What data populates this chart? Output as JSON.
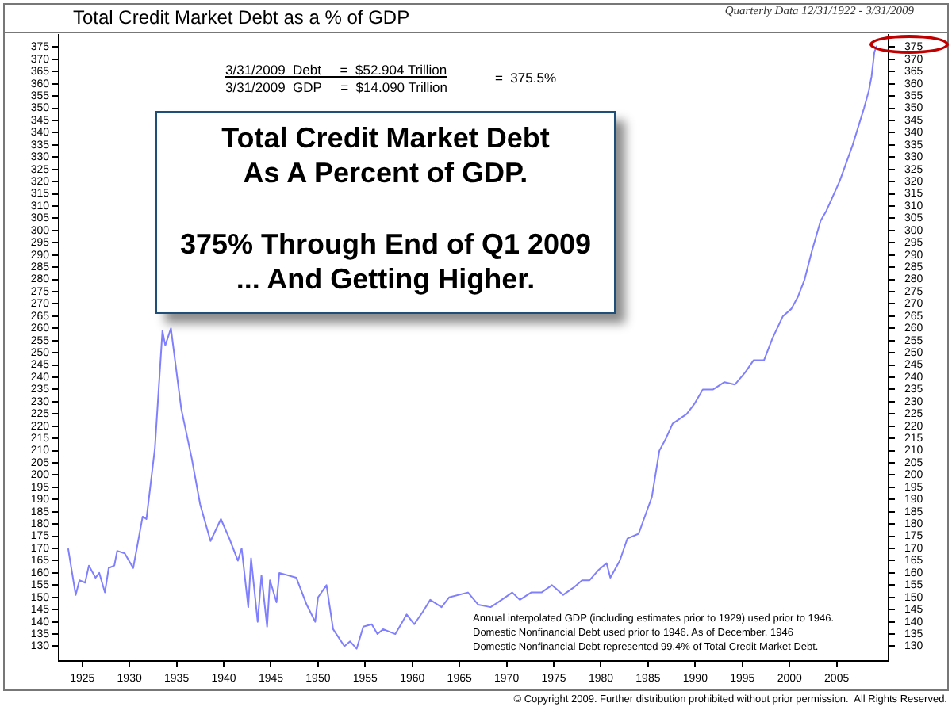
{
  "chart_data": {
    "type": "line",
    "title": "Total Credit Market Debt as a % of GDP",
    "subtitle": "Quarterly Data 12/31/1922 - 3/31/2009",
    "x": [
      1923.5,
      1924.3,
      1924.7,
      1925.3,
      1925.7,
      1926.4,
      1926.8,
      1927.4,
      1927.8,
      1928.4,
      1928.7,
      1929.5,
      1930.4,
      1931.4,
      1931.8,
      1932.7,
      1933.5,
      1933.8,
      1934.4,
      1935.5,
      1936.6,
      1937.5,
      1938.6,
      1939.7,
      1940.6,
      1941.5,
      1941.9,
      1942.6,
      1942.9,
      1943.6,
      1944.0,
      1944.6,
      1944.9,
      1945.6,
      1945.9,
      1947.7,
      1948.8,
      1949.7,
      1950.0,
      1950.9,
      1951.6,
      1952.8,
      1953.4,
      1954.1,
      1954.8,
      1955.7,
      1956.3,
      1956.9,
      1958.2,
      1959.4,
      1960.2,
      1961.1,
      1961.9,
      1963.1,
      1963.9,
      1965.9,
      1967.0,
      1968.3,
      1969.1,
      1970.6,
      1971.4,
      1972.6,
      1973.7,
      1974.8,
      1976.0,
      1977.1,
      1978.0,
      1978.8,
      1979.7,
      1980.6,
      1981.0,
      1982.0,
      1982.8,
      1984.0,
      1985.4,
      1986.2,
      1986.9,
      1987.6,
      1989.1,
      1989.9,
      1990.8,
      1991.9,
      1993.1,
      1994.2,
      1995.3,
      1996.2,
      1997.3,
      1998.2,
      1999.3,
      2000.2,
      2000.9,
      2001.6,
      2002.4,
      2003.3,
      2003.9,
      2005.3,
      2006.7,
      2007.9,
      2008.4,
      2008.7,
      2009.0,
      2009.25
    ],
    "series": [
      {
        "color": "#8080ff",
        "values": [
          170,
          151,
          157,
          156,
          163,
          158,
          160,
          152,
          162,
          163,
          169,
          168,
          162,
          183,
          182,
          211,
          259,
          253,
          260,
          227,
          207,
          188,
          173,
          182,
          174,
          165,
          170,
          146,
          166,
          140,
          159,
          138,
          157,
          148,
          160,
          158,
          147,
          140,
          150,
          155,
          137,
          130,
          132,
          129,
          138,
          139,
          135,
          137,
          135,
          143,
          139,
          144,
          149,
          146,
          150,
          152,
          147,
          146,
          148,
          152,
          149,
          152,
          152,
          155,
          151,
          154,
          157,
          157,
          161,
          164,
          158,
          165,
          174,
          176,
          191,
          210,
          215,
          221,
          225,
          229,
          235,
          235,
          238,
          237,
          242,
          247,
          247,
          256,
          265,
          268,
          273,
          280,
          292,
          304,
          308,
          320,
          335,
          350,
          357,
          363,
          373,
          375.5
        ]
      }
    ],
    "xlim": [
      1922.5,
      2010.5
    ],
    "xticks": [
      1925,
      1930,
      1935,
      1940,
      1945,
      1950,
      1955,
      1960,
      1965,
      1970,
      1975,
      1980,
      1985,
      1990,
      1995,
      2000,
      2005
    ],
    "ylim": [
      124,
      380
    ],
    "yticks": [
      130,
      135,
      140,
      145,
      150,
      155,
      160,
      165,
      170,
      175,
      180,
      185,
      190,
      195,
      200,
      205,
      210,
      215,
      220,
      225,
      230,
      235,
      240,
      245,
      250,
      255,
      260,
      265,
      270,
      275,
      280,
      285,
      290,
      295,
      300,
      305,
      310,
      315,
      320,
      325,
      330,
      335,
      340,
      345,
      350,
      355,
      360,
      365,
      370,
      375
    ],
    "y2lim": [
      124,
      380
    ],
    "y2ticks": [
      130,
      135,
      140,
      145,
      150,
      155,
      160,
      165,
      170,
      175,
      180,
      185,
      190,
      195,
      200,
      205,
      210,
      215,
      220,
      225,
      230,
      235,
      240,
      245,
      250,
      255,
      260,
      265,
      270,
      275,
      280,
      285,
      290,
      295,
      300,
      305,
      310,
      315,
      320,
      325,
      330,
      335,
      340,
      345,
      350,
      355,
      360,
      365,
      370,
      375
    ],
    "grid": false,
    "legend": false,
    "marker": "none",
    "line_style": "solid",
    "annotations": [
      "3/31/2009  Debt     =  $52.904 Trillion",
      "3/31/2009  GDP     =  $14.090 Trillion",
      "=  375.5%",
      "Total Credit Market Debt",
      "As A Percent of GDP.",
      "375% Through End of Q1 2009",
      "... And Getting Higher.",
      "Annual interpolated GDP (including estimates prior to 1929) used prior to 1946.",
      "Domestic Nonfinancial Debt used prior to 1946. As of December, 1946",
      "Domestic Nonfinancial Debt represented 99.4% of Total Credit Market Debt.",
      "© Copyright 2009. Further distribution prohibited without prior permission.  All Rights Reserved."
    ]
  }
}
